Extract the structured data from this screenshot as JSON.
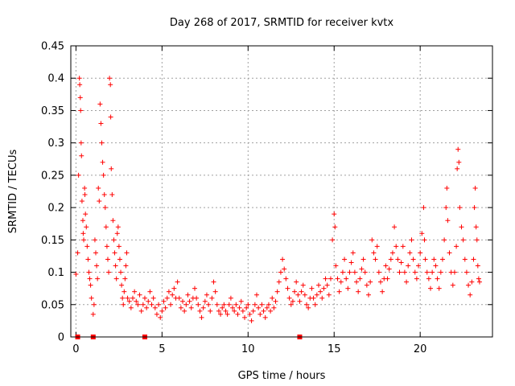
{
  "chart_data": {
    "type": "scatter",
    "title": "Day 268 of 2017, SRMTID for receiver kvtx",
    "xlabel": "GPS time / hours",
    "ylabel": "SRMTID / TECUs",
    "xlim": [
      -0.3,
      24.2
    ],
    "ylim": [
      0,
      0.45
    ],
    "x_ticks": [
      0,
      5,
      10,
      15,
      20
    ],
    "y_ticks": [
      0,
      0.05,
      0.1,
      0.15,
      0.2,
      0.25,
      0.3,
      0.35,
      0.4,
      0.45
    ],
    "x_tick_labels": [
      "0",
      "5",
      "10",
      "15",
      "20"
    ],
    "y_tick_labels": [
      "0",
      "0.05",
      "0.1",
      "0.15",
      "0.2",
      "0.25",
      "0.3",
      "0.35",
      "0.4",
      "0.45"
    ],
    "grid": true,
    "marker": "+",
    "color": "#ff0000",
    "zero_markers_x": [
      0.1,
      1.0,
      4.0,
      13.0
    ],
    "series": [
      {
        "name": "SRMTID",
        "points": [
          [
            0.0,
            0.097
          ],
          [
            0.1,
            0.13
          ],
          [
            0.15,
            0.25
          ],
          [
            0.2,
            0.4
          ],
          [
            0.22,
            0.39
          ],
          [
            0.25,
            0.37
          ],
          [
            0.27,
            0.35
          ],
          [
            0.3,
            0.3
          ],
          [
            0.32,
            0.28
          ],
          [
            0.35,
            0.21
          ],
          [
            0.4,
            0.18
          ],
          [
            0.42,
            0.16
          ],
          [
            0.45,
            0.15
          ],
          [
            0.5,
            0.23
          ],
          [
            0.52,
            0.22
          ],
          [
            0.55,
            0.19
          ],
          [
            0.6,
            0.17
          ],
          [
            0.65,
            0.14
          ],
          [
            0.7,
            0.12
          ],
          [
            0.75,
            0.1
          ],
          [
            0.8,
            0.09
          ],
          [
            0.85,
            0.08
          ],
          [
            0.9,
            0.06
          ],
          [
            1.0,
            0.035
          ],
          [
            1.05,
            0.05
          ],
          [
            1.1,
            0.15
          ],
          [
            1.15,
            0.13
          ],
          [
            1.2,
            0.11
          ],
          [
            1.25,
            0.09
          ],
          [
            1.3,
            0.23
          ],
          [
            1.35,
            0.21
          ],
          [
            1.4,
            0.36
          ],
          [
            1.45,
            0.33
          ],
          [
            1.5,
            0.3
          ],
          [
            1.55,
            0.27
          ],
          [
            1.6,
            0.25
          ],
          [
            1.65,
            0.22
          ],
          [
            1.7,
            0.2
          ],
          [
            1.75,
            0.17
          ],
          [
            1.8,
            0.14
          ],
          [
            1.85,
            0.12
          ],
          [
            1.9,
            0.1
          ],
          [
            1.95,
            0.4
          ],
          [
            2.0,
            0.39
          ],
          [
            2.02,
            0.34
          ],
          [
            2.05,
            0.26
          ],
          [
            2.1,
            0.22
          ],
          [
            2.15,
            0.18
          ],
          [
            2.2,
            0.15
          ],
          [
            2.25,
            0.13
          ],
          [
            2.3,
            0.11
          ],
          [
            2.35,
            0.09
          ],
          [
            2.4,
            0.16
          ],
          [
            2.45,
            0.17
          ],
          [
            2.5,
            0.14
          ],
          [
            2.55,
            0.12
          ],
          [
            2.6,
            0.1
          ],
          [
            2.65,
            0.08
          ],
          [
            2.7,
            0.06
          ],
          [
            2.75,
            0.05
          ],
          [
            2.8,
            0.07
          ],
          [
            2.85,
            0.09
          ],
          [
            2.9,
            0.11
          ],
          [
            2.95,
            0.13
          ],
          [
            3.0,
            0.06
          ],
          [
            3.1,
            0.055
          ],
          [
            3.2,
            0.045
          ],
          [
            3.3,
            0.06
          ],
          [
            3.4,
            0.07
          ],
          [
            3.5,
            0.055
          ],
          [
            3.6,
            0.05
          ],
          [
            3.7,
            0.065
          ],
          [
            3.8,
            0.04
          ],
          [
            3.9,
            0.05
          ],
          [
            4.0,
            0.06
          ],
          [
            4.1,
            0.045
          ],
          [
            4.2,
            0.055
          ],
          [
            4.3,
            0.07
          ],
          [
            4.4,
            0.05
          ],
          [
            4.5,
            0.06
          ],
          [
            4.6,
            0.045
          ],
          [
            4.7,
            0.035
          ],
          [
            4.8,
            0.05
          ],
          [
            4.9,
            0.03
          ],
          [
            5.0,
            0.04
          ],
          [
            5.1,
            0.055
          ],
          [
            5.2,
            0.045
          ],
          [
            5.3,
            0.06
          ],
          [
            5.4,
            0.07
          ],
          [
            5.5,
            0.05
          ],
          [
            5.6,
            0.065
          ],
          [
            5.7,
            0.075
          ],
          [
            5.8,
            0.06
          ],
          [
            5.9,
            0.085
          ],
          [
            6.0,
            0.06
          ],
          [
            6.1,
            0.045
          ],
          [
            6.2,
            0.055
          ],
          [
            6.3,
            0.04
          ],
          [
            6.4,
            0.05
          ],
          [
            6.5,
            0.065
          ],
          [
            6.6,
            0.055
          ],
          [
            6.7,
            0.045
          ],
          [
            6.8,
            0.06
          ],
          [
            6.9,
            0.075
          ],
          [
            7.0,
            0.06
          ],
          [
            7.1,
            0.05
          ],
          [
            7.2,
            0.04
          ],
          [
            7.3,
            0.03
          ],
          [
            7.4,
            0.045
          ],
          [
            7.5,
            0.055
          ],
          [
            7.6,
            0.065
          ],
          [
            7.7,
            0.05
          ],
          [
            7.8,
            0.04
          ],
          [
            7.9,
            0.06
          ],
          [
            8.0,
            0.085
          ],
          [
            8.1,
            0.07
          ],
          [
            8.2,
            0.05
          ],
          [
            8.3,
            0.04
          ],
          [
            8.4,
            0.035
          ],
          [
            8.5,
            0.045
          ],
          [
            8.6,
            0.05
          ],
          [
            8.7,
            0.04
          ],
          [
            8.8,
            0.035
          ],
          [
            8.9,
            0.05
          ],
          [
            9.0,
            0.06
          ],
          [
            9.1,
            0.045
          ],
          [
            9.2,
            0.04
          ],
          [
            9.3,
            0.05
          ],
          [
            9.4,
            0.035
          ],
          [
            9.5,
            0.045
          ],
          [
            9.6,
            0.055
          ],
          [
            9.7,
            0.04
          ],
          [
            9.8,
            0.03
          ],
          [
            9.9,
            0.045
          ],
          [
            10.0,
            0.05
          ],
          [
            10.1,
            0.035
          ],
          [
            10.2,
            0.025
          ],
          [
            10.3,
            0.04
          ],
          [
            10.4,
            0.05
          ],
          [
            10.5,
            0.065
          ],
          [
            10.6,
            0.045
          ],
          [
            10.7,
            0.035
          ],
          [
            10.8,
            0.05
          ],
          [
            10.9,
            0.04
          ],
          [
            11.0,
            0.03
          ],
          [
            11.1,
            0.045
          ],
          [
            11.2,
            0.05
          ],
          [
            11.3,
            0.04
          ],
          [
            11.4,
            0.06
          ],
          [
            11.5,
            0.045
          ],
          [
            11.6,
            0.055
          ],
          [
            11.7,
            0.07
          ],
          [
            11.8,
            0.085
          ],
          [
            11.9,
            0.1
          ],
          [
            12.0,
            0.12
          ],
          [
            12.1,
            0.105
          ],
          [
            12.2,
            0.09
          ],
          [
            12.3,
            0.075
          ],
          [
            12.4,
            0.06
          ],
          [
            12.5,
            0.05
          ],
          [
            12.6,
            0.055
          ],
          [
            12.7,
            0.07
          ],
          [
            12.8,
            0.085
          ],
          [
            12.9,
            0.065
          ],
          [
            13.0,
            0.055
          ],
          [
            13.1,
            0.07
          ],
          [
            13.2,
            0.08
          ],
          [
            13.3,
            0.065
          ],
          [
            13.4,
            0.05
          ],
          [
            13.5,
            0.045
          ],
          [
            13.6,
            0.06
          ],
          [
            13.7,
            0.075
          ],
          [
            13.8,
            0.06
          ],
          [
            13.9,
            0.05
          ],
          [
            14.0,
            0.065
          ],
          [
            14.1,
            0.08
          ],
          [
            14.2,
            0.07
          ],
          [
            14.3,
            0.06
          ],
          [
            14.4,
            0.075
          ],
          [
            14.5,
            0.09
          ],
          [
            14.6,
            0.08
          ],
          [
            14.7,
            0.065
          ],
          [
            14.8,
            0.09
          ],
          [
            14.9,
            0.15
          ],
          [
            15.0,
            0.19
          ],
          [
            15.05,
            0.17
          ],
          [
            15.1,
            0.11
          ],
          [
            15.2,
            0.09
          ],
          [
            15.3,
            0.07
          ],
          [
            15.4,
            0.085
          ],
          [
            15.5,
            0.1
          ],
          [
            15.6,
            0.12
          ],
          [
            15.7,
            0.09
          ],
          [
            15.8,
            0.075
          ],
          [
            15.9,
            0.1
          ],
          [
            16.0,
            0.115
          ],
          [
            16.1,
            0.13
          ],
          [
            16.2,
            0.1
          ],
          [
            16.3,
            0.085
          ],
          [
            16.4,
            0.07
          ],
          [
            16.5,
            0.09
          ],
          [
            16.6,
            0.105
          ],
          [
            16.7,
            0.12
          ],
          [
            16.8,
            0.1
          ],
          [
            16.9,
            0.08
          ],
          [
            17.0,
            0.065
          ],
          [
            17.1,
            0.085
          ],
          [
            17.2,
            0.15
          ],
          [
            17.3,
            0.13
          ],
          [
            17.4,
            0.12
          ],
          [
            17.5,
            0.14
          ],
          [
            17.6,
            0.1
          ],
          [
            17.7,
            0.085
          ],
          [
            17.8,
            0.07
          ],
          [
            17.9,
            0.09
          ],
          [
            18.0,
            0.11
          ],
          [
            18.1,
            0.09
          ],
          [
            18.2,
            0.105
          ],
          [
            18.3,
            0.12
          ],
          [
            18.4,
            0.13
          ],
          [
            18.5,
            0.17
          ],
          [
            18.6,
            0.14
          ],
          [
            18.7,
            0.12
          ],
          [
            18.8,
            0.1
          ],
          [
            18.9,
            0.115
          ],
          [
            19.0,
            0.14
          ],
          [
            19.1,
            0.1
          ],
          [
            19.2,
            0.085
          ],
          [
            19.3,
            0.11
          ],
          [
            19.4,
            0.13
          ],
          [
            19.5,
            0.15
          ],
          [
            19.6,
            0.12
          ],
          [
            19.7,
            0.1
          ],
          [
            19.8,
            0.09
          ],
          [
            19.9,
            0.11
          ],
          [
            20.0,
            0.13
          ],
          [
            20.1,
            0.16
          ],
          [
            20.2,
            0.2
          ],
          [
            20.25,
            0.15
          ],
          [
            20.3,
            0.12
          ],
          [
            20.4,
            0.1
          ],
          [
            20.5,
            0.09
          ],
          [
            20.6,
            0.075
          ],
          [
            20.7,
            0.1
          ],
          [
            20.8,
            0.12
          ],
          [
            20.9,
            0.11
          ],
          [
            21.0,
            0.09
          ],
          [
            21.1,
            0.075
          ],
          [
            21.2,
            0.1
          ],
          [
            21.3,
            0.12
          ],
          [
            21.4,
            0.15
          ],
          [
            21.5,
            0.2
          ],
          [
            21.55,
            0.23
          ],
          [
            21.6,
            0.18
          ],
          [
            21.7,
            0.13
          ],
          [
            21.8,
            0.1
          ],
          [
            21.9,
            0.08
          ],
          [
            22.0,
            0.1
          ],
          [
            22.1,
            0.14
          ],
          [
            22.15,
            0.26
          ],
          [
            22.2,
            0.29
          ],
          [
            22.25,
            0.27
          ],
          [
            22.3,
            0.2
          ],
          [
            22.4,
            0.17
          ],
          [
            22.5,
            0.15
          ],
          [
            22.6,
            0.12
          ],
          [
            22.7,
            0.1
          ],
          [
            22.8,
            0.08
          ],
          [
            22.9,
            0.065
          ],
          [
            23.0,
            0.085
          ],
          [
            23.1,
            0.12
          ],
          [
            23.15,
            0.2
          ],
          [
            23.2,
            0.23
          ],
          [
            23.25,
            0.17
          ],
          [
            23.3,
            0.15
          ],
          [
            23.35,
            0.11
          ],
          [
            23.4,
            0.09
          ],
          [
            23.45,
            0.085
          ]
        ]
      }
    ]
  }
}
